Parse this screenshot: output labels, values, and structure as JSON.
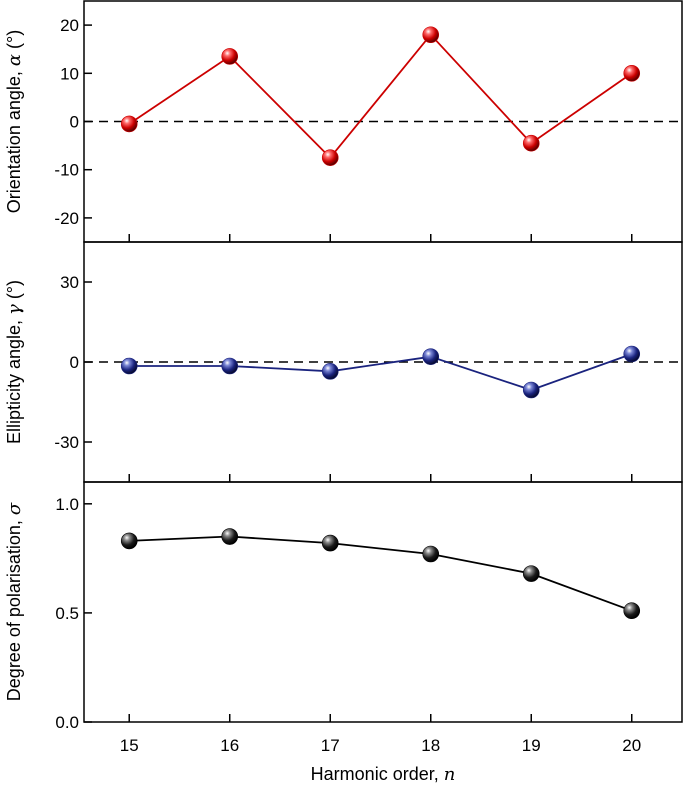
{
  "x_axis": {
    "label": "Harmonic order, ",
    "symbol": "n",
    "ticks": [
      15,
      16,
      17,
      18,
      19,
      20
    ],
    "xlim": [
      14.55,
      20.5
    ]
  },
  "colors": {
    "panel1": "#cc0000",
    "panel2": "#1a237e",
    "panel3": "#000000",
    "zero_line": "#000000"
  },
  "chart_data": [
    {
      "type": "line",
      "ylabel": "Orientation angle, ",
      "ylabel_symbol": "α",
      "ylabel_unit": " (°)",
      "ylim": [
        -25,
        25
      ],
      "yticks": [
        20,
        10,
        0,
        -10,
        -20
      ],
      "zero_line": true,
      "x": [
        15,
        16,
        17,
        18,
        19,
        20
      ],
      "values": [
        -0.5,
        13.5,
        -7.5,
        18,
        -4.5,
        10
      ]
    },
    {
      "type": "line",
      "ylabel": "Ellipticity angle, ",
      "ylabel_symbol": "γ",
      "ylabel_unit": " (°)",
      "ylim": [
        -45,
        45
      ],
      "yticks": [
        30,
        0,
        -30
      ],
      "zero_line": true,
      "x": [
        15,
        16,
        17,
        18,
        19,
        20
      ],
      "values": [
        -1.5,
        -1.5,
        -3.5,
        2,
        -10.5,
        3
      ]
    },
    {
      "type": "line",
      "ylabel": "Degree of polarisation, ",
      "ylabel_symbol": "σ",
      "ylabel_unit": "",
      "ylim": [
        0,
        1.1
      ],
      "yticks": [
        1.0,
        0.5,
        0.0
      ],
      "tick_format": "1dp",
      "zero_line": false,
      "x": [
        15,
        16,
        17,
        18,
        19,
        20
      ],
      "values": [
        0.83,
        0.85,
        0.82,
        0.77,
        0.68,
        0.51
      ]
    }
  ]
}
